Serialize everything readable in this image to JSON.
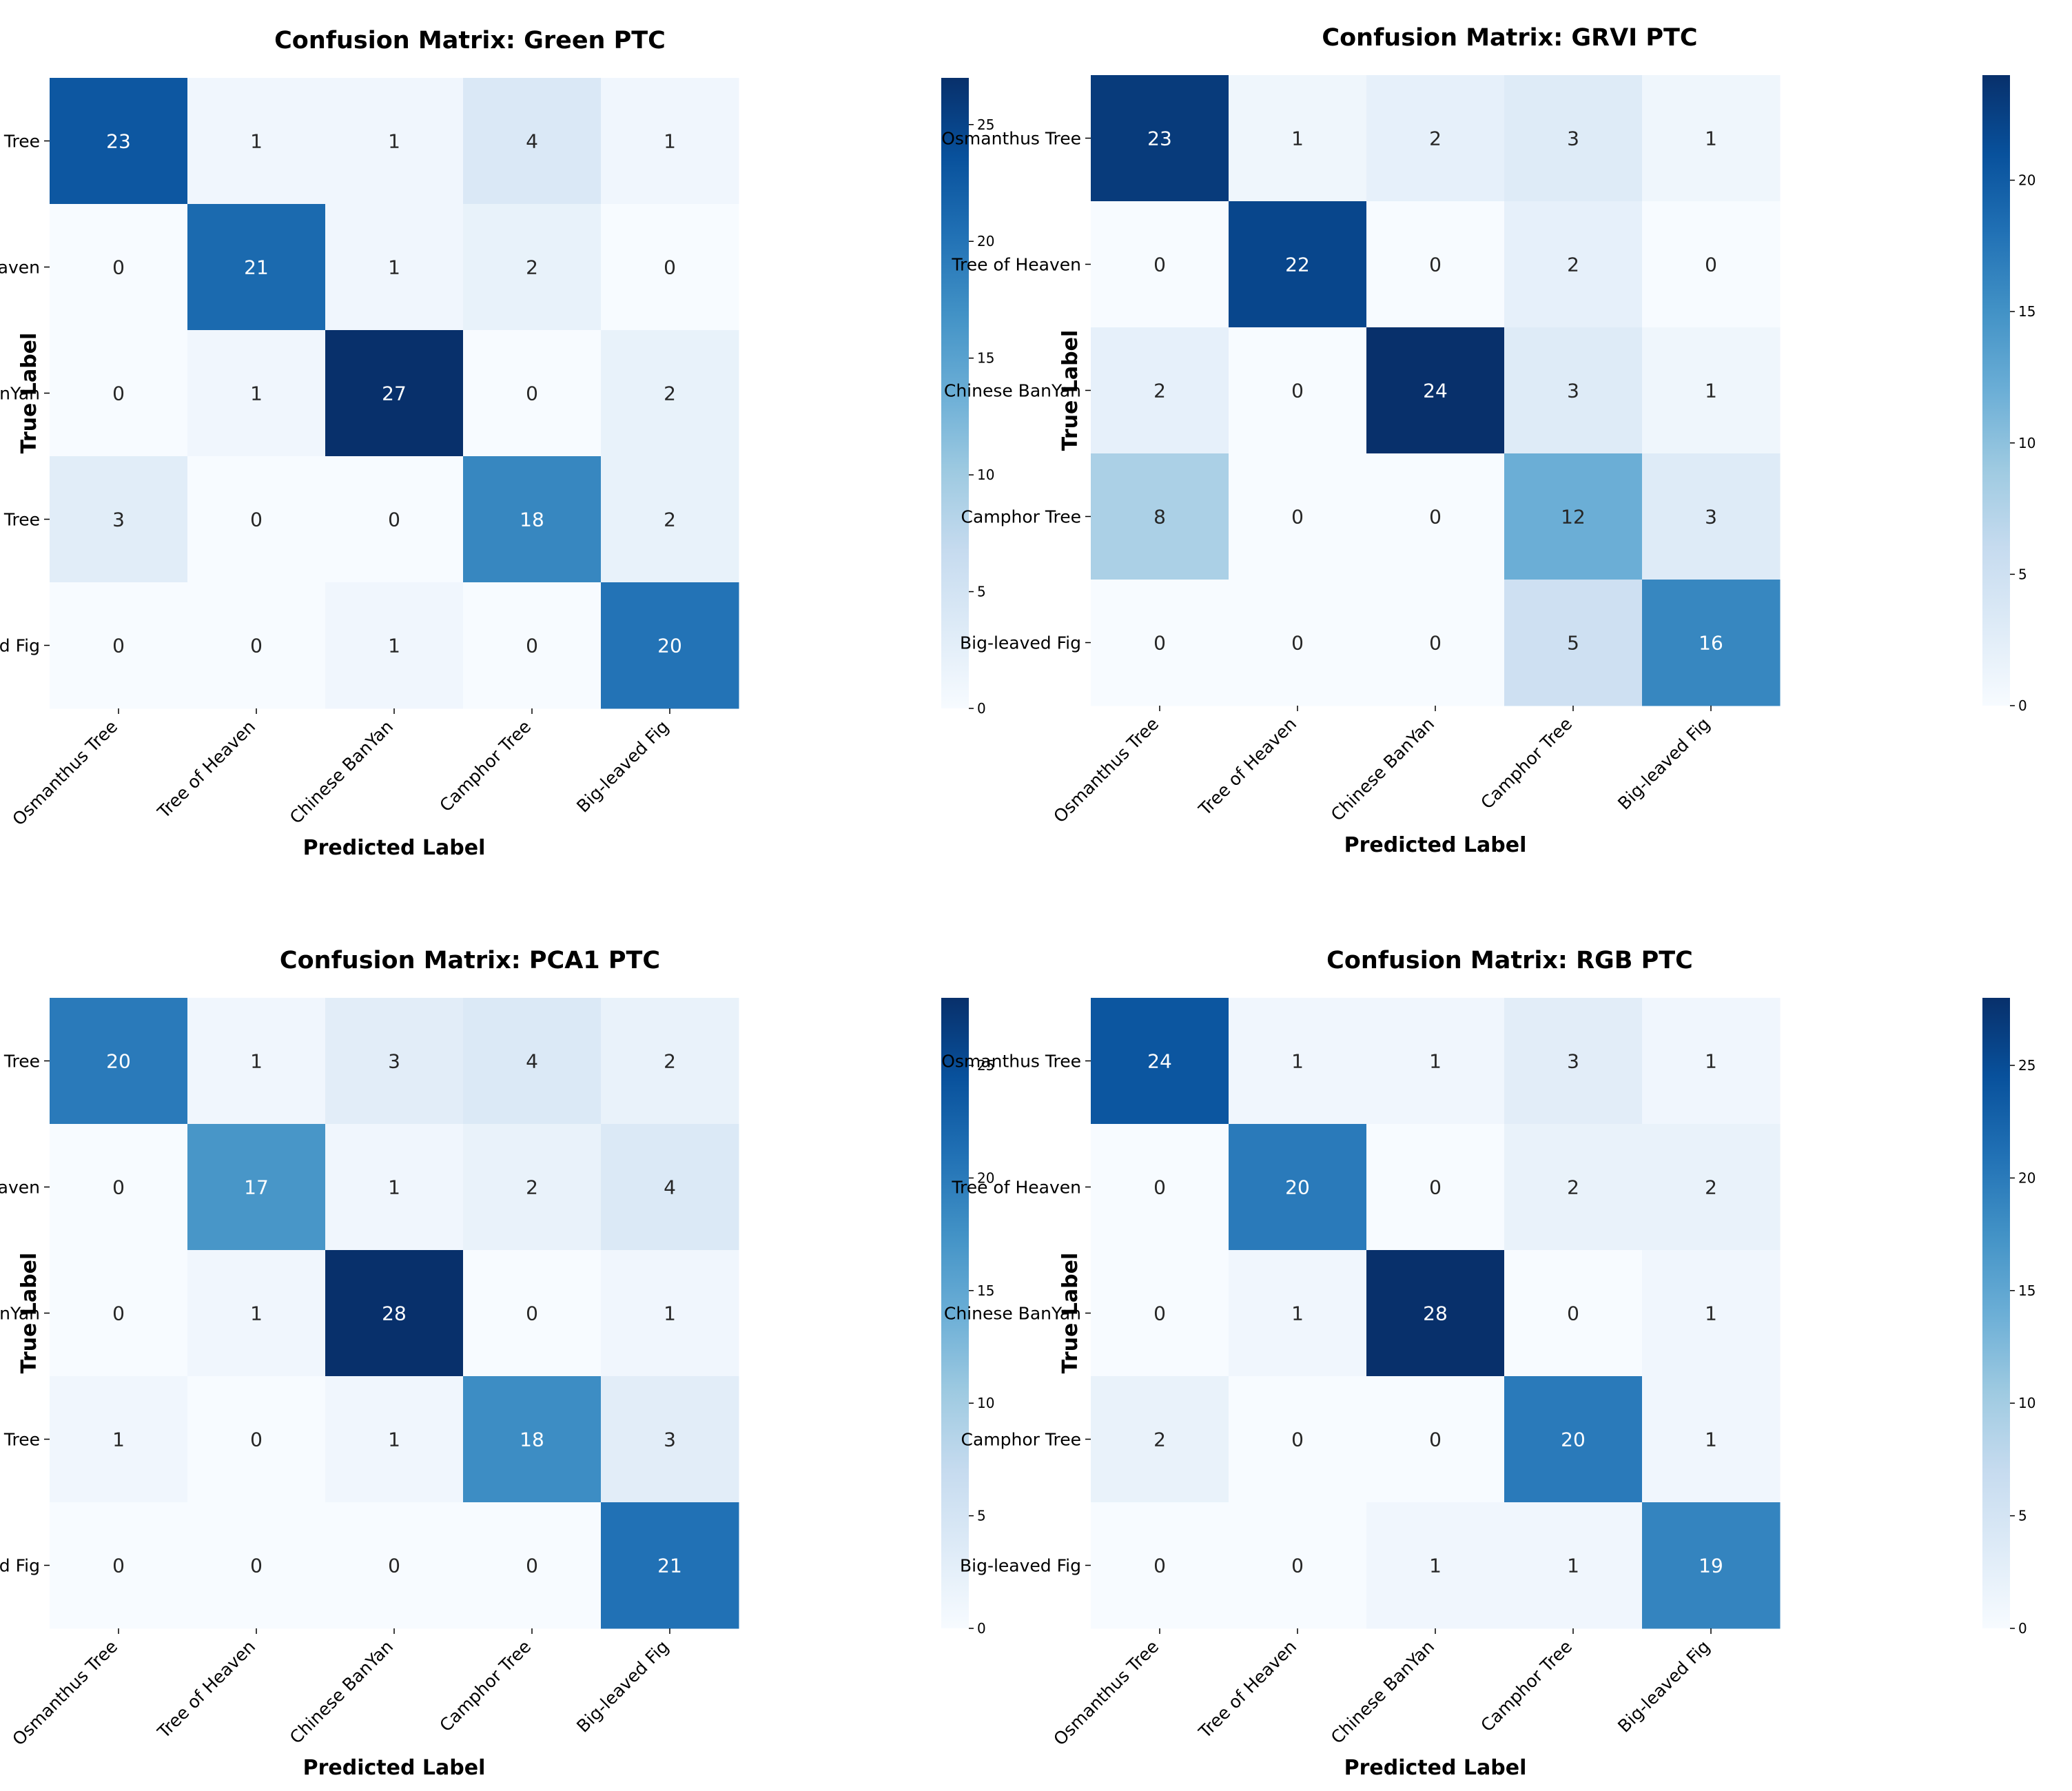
{
  "chart_data": [
    {
      "type": "heatmap",
      "title": "Confusion Matrix: Green  PTC",
      "xlabel": "Predicted Label",
      "ylabel": "True Label",
      "x_categories": [
        "Osmanthus Tree",
        "Tree of Heaven",
        "Chinese BanYan",
        "Camphor Tree",
        "Big-leaved Fig"
      ],
      "y_categories": [
        "Osmanthus Tree",
        "Tree of Heaven",
        "Chinese BanYan",
        "Camphor Tree",
        "Big-leaved Fig"
      ],
      "values": [
        [
          23,
          1,
          1,
          4,
          1
        ],
        [
          0,
          21,
          1,
          2,
          0
        ],
        [
          0,
          1,
          27,
          0,
          2
        ],
        [
          3,
          0,
          0,
          18,
          2
        ],
        [
          0,
          0,
          1,
          0,
          20
        ]
      ],
      "colorbar_ticks": [
        0,
        5,
        10,
        15,
        20,
        25
      ],
      "colorscale": "Blues",
      "vmin": 0,
      "vmax": 27
    },
    {
      "type": "heatmap",
      "title": "Confusion Matrix: GRVI  PTC",
      "xlabel": "Predicted Label",
      "ylabel": "True Label",
      "x_categories": [
        "Osmanthus Tree",
        "Tree of Heaven",
        "Chinese BanYan",
        "Camphor Tree",
        "Big-leaved Fig"
      ],
      "y_categories": [
        "Osmanthus Tree",
        "Tree of Heaven",
        "Chinese BanYan",
        "Camphor Tree",
        "Big-leaved Fig"
      ],
      "values": [
        [
          23,
          1,
          2,
          3,
          1
        ],
        [
          0,
          22,
          0,
          2,
          0
        ],
        [
          2,
          0,
          24,
          3,
          1
        ],
        [
          8,
          0,
          0,
          12,
          3
        ],
        [
          0,
          0,
          0,
          5,
          16
        ]
      ],
      "colorbar_ticks": [
        0,
        5,
        10,
        15,
        20
      ],
      "colorscale": "Blues",
      "vmin": 0,
      "vmax": 24
    },
    {
      "type": "heatmap",
      "title": "Confusion Matrix: PCA1  PTC",
      "xlabel": "Predicted Label",
      "ylabel": "True Label",
      "x_categories": [
        "Osmanthus Tree",
        "Tree of Heaven",
        "Chinese BanYan",
        "Camphor Tree",
        "Big-leaved Fig"
      ],
      "y_categories": [
        "Osmanthus Tree",
        "Tree of Heaven",
        "Chinese BanYan",
        "Camphor Tree",
        "Big-leaved Fig"
      ],
      "values": [
        [
          20,
          1,
          3,
          4,
          2
        ],
        [
          0,
          17,
          1,
          2,
          4
        ],
        [
          0,
          1,
          28,
          0,
          1
        ],
        [
          1,
          0,
          1,
          18,
          3
        ],
        [
          0,
          0,
          0,
          0,
          21
        ]
      ],
      "colorbar_ticks": [
        0,
        5,
        10,
        15,
        20,
        25
      ],
      "colorscale": "Blues",
      "vmin": 0,
      "vmax": 28
    },
    {
      "type": "heatmap",
      "title": "Confusion Matrix: RGB  PTC",
      "xlabel": "Predicted Label",
      "ylabel": "True Label",
      "x_categories": [
        "Osmanthus Tree",
        "Tree of Heaven",
        "Chinese BanYan",
        "Camphor Tree",
        "Big-leaved Fig"
      ],
      "y_categories": [
        "Osmanthus Tree",
        "Tree of Heaven",
        "Chinese BanYan",
        "Camphor Tree",
        "Big-leaved Fig"
      ],
      "values": [
        [
          24,
          1,
          1,
          3,
          1
        ],
        [
          0,
          20,
          0,
          2,
          2
        ],
        [
          0,
          1,
          28,
          0,
          1
        ],
        [
          2,
          0,
          0,
          20,
          1
        ],
        [
          0,
          0,
          1,
          1,
          19
        ]
      ],
      "colorbar_ticks": [
        0,
        5,
        10,
        15,
        20,
        25
      ],
      "colorscale": "Blues",
      "vmin": 0,
      "vmax": 28
    }
  ]
}
